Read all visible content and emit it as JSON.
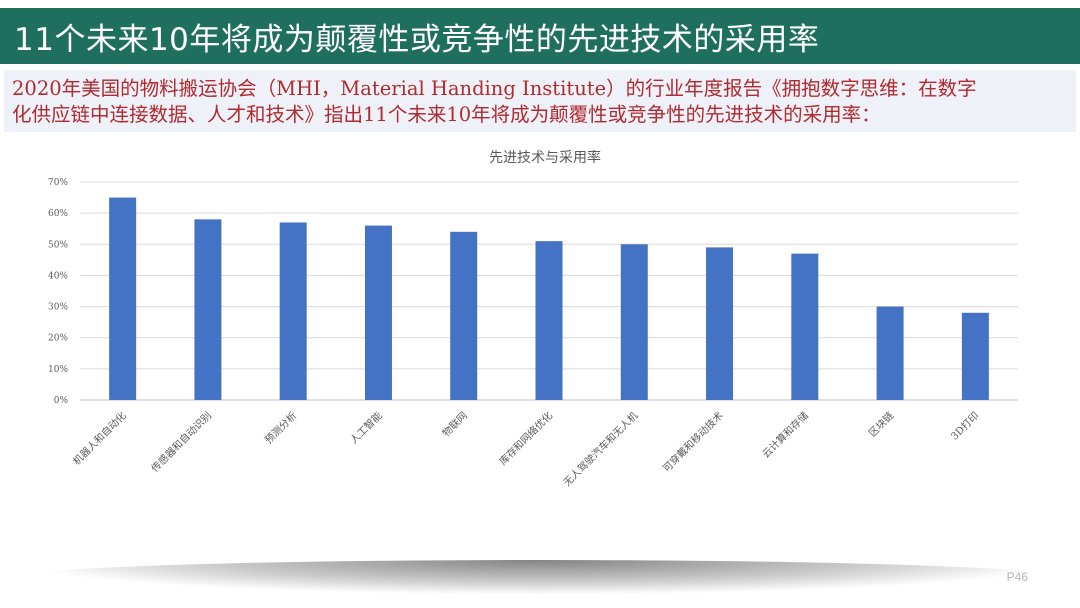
{
  "slide": {
    "title": "11个未来10年将成为颠覆性或竞争性的先进技术的采用率",
    "intro_line1": "2020年美国的物料搬运协会（MHI，Material Handing Institute）的行业年度报告《拥抱数字思维：在数字",
    "intro_line2": "化供应链中连接数据、人才和技术》指出11个未来10年将成为颠覆性或竞争性的先进技术的采用率：",
    "page_number": "P46"
  },
  "colors": {
    "title_bg": "#1f6f5f",
    "intro_text": "#b02a2f",
    "bar": "#4472c4",
    "grid": "#d9d9d9"
  },
  "chart_data": {
    "type": "bar",
    "title": "先进技术与采用率",
    "categories": [
      "机器人和自动化",
      "传感器和自动识别",
      "预测分析",
      "人工智能",
      "物联网",
      "库存和网络优化",
      "无人驾驶汽车和无人机",
      "可穿戴和移动技术",
      "云计算和存储",
      "区块链",
      "3D打印"
    ],
    "values": [
      65,
      58,
      57,
      56,
      54,
      51,
      50,
      49,
      47,
      30,
      28
    ],
    "ylim": [
      0,
      70
    ],
    "yticks": [
      "0%",
      "10%",
      "20%",
      "30%",
      "40%",
      "50%",
      "60%",
      "70%"
    ],
    "grid": true,
    "legend": "none"
  }
}
